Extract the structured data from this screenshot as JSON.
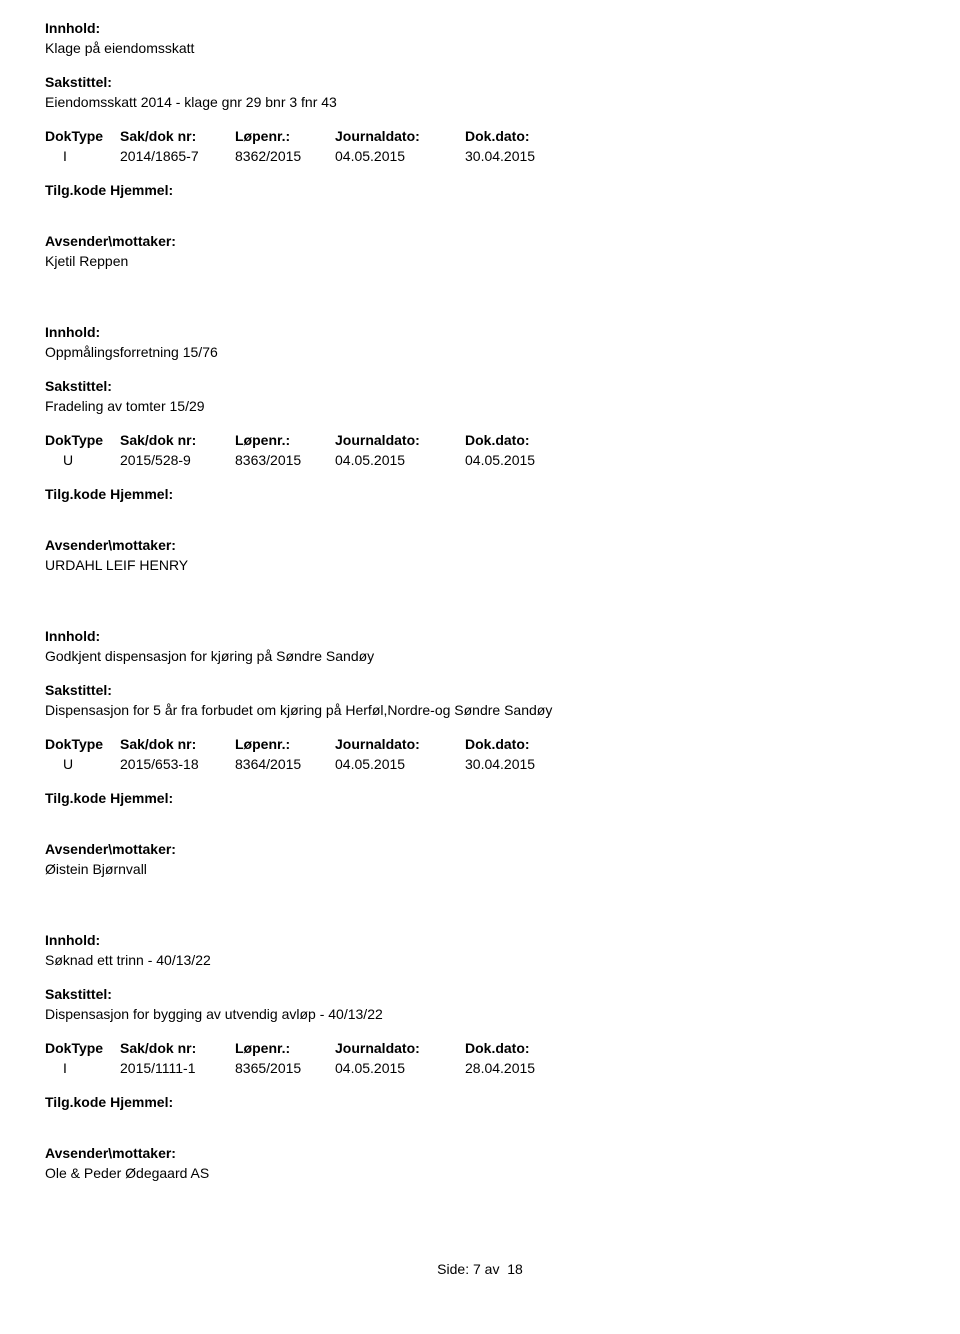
{
  "labels": {
    "innhold": "Innhold:",
    "sakstittel": "Sakstittel:",
    "doktype": "DokType",
    "sakdoknr": "Sak/dok nr:",
    "lopenr": "Løpenr.:",
    "journaldato": "Journaldato:",
    "dokdato": "Dok.dato:",
    "tilgkode": "Tilg.kode",
    "hjemmel": "Hjemmel:",
    "avsender": "Avsender\\mottaker:"
  },
  "entries": [
    {
      "innhold": "Klage på eiendomsskatt",
      "sakstittel": "Eiendomsskatt 2014 - klage gnr 29 bnr 3 fnr 43",
      "doktype": "I",
      "sakdoknr": "2014/1865-7",
      "lopenr": "8362/2015",
      "journaldato": "04.05.2015",
      "dokdato": "30.04.2015",
      "avsender": "Kjetil Reppen"
    },
    {
      "innhold": "Oppmålingsforretning 15/76",
      "sakstittel": "Fradeling av tomter 15/29",
      "doktype": "U",
      "sakdoknr": "2015/528-9",
      "lopenr": "8363/2015",
      "journaldato": "04.05.2015",
      "dokdato": "04.05.2015",
      "avsender": "URDAHL LEIF HENRY"
    },
    {
      "innhold": "Godkjent dispensasjon for kjøring på  Søndre Sandøy",
      "sakstittel": "Dispensasjon for 5 år fra forbudet om kjøring på Herføl,Nordre-og Søndre Sandøy",
      "doktype": "U",
      "sakdoknr": "2015/653-18",
      "lopenr": "8364/2015",
      "journaldato": "04.05.2015",
      "dokdato": "30.04.2015",
      "avsender": "Øistein Bjørnvall"
    },
    {
      "innhold": "Søknad ett trinn - 40/13/22",
      "sakstittel": "Dispensasjon for bygging av utvendig avløp - 40/13/22",
      "doktype": "I",
      "sakdoknr": "2015/1111-1",
      "lopenr": "8365/2015",
      "journaldato": "04.05.2015",
      "dokdato": "28.04.2015",
      "avsender": "Ole & Peder Ødegaard AS"
    }
  ],
  "footer": {
    "side_label": "Side:",
    "page_current": "7",
    "page_sep": "av",
    "page_total": "18"
  }
}
